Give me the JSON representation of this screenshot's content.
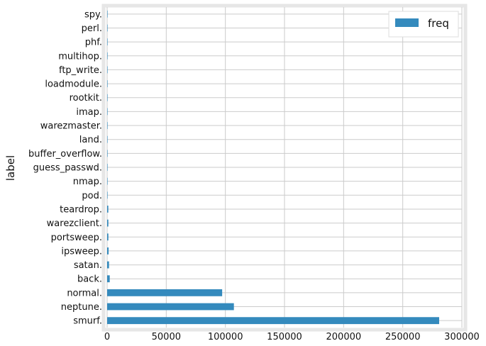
{
  "chart_data": {
    "type": "bar",
    "orientation": "horizontal",
    "ylabel": "label",
    "xlabel": "",
    "categories": [
      "smurf.",
      "neptune.",
      "normal.",
      "back.",
      "satan.",
      "ipsweep.",
      "portsweep.",
      "warezclient.",
      "teardrop.",
      "pod.",
      "nmap.",
      "guess_passwd.",
      "buffer_overflow.",
      "land.",
      "warezmaster.",
      "imap.",
      "rootkit.",
      "loadmodule.",
      "ftp_write.",
      "multihop.",
      "phf.",
      "perl.",
      "spy."
    ],
    "series": [
      {
        "name": "freq",
        "color": "#348ABD",
        "values": [
          280790,
          107201,
          97278,
          2203,
          1589,
          1247,
          1040,
          1020,
          979,
          264,
          231,
          53,
          30,
          21,
          20,
          12,
          10,
          9,
          8,
          7,
          4,
          3,
          2
        ]
      }
    ],
    "xlim": [
      0,
      300000
    ],
    "xticks": [
      0,
      50000,
      100000,
      150000,
      200000,
      250000,
      300000
    ],
    "xtick_labels": [
      "0",
      "50000",
      "100000",
      "150000",
      "200000",
      "250000",
      "300000"
    ],
    "grid": true,
    "legend_position": "top-right"
  }
}
